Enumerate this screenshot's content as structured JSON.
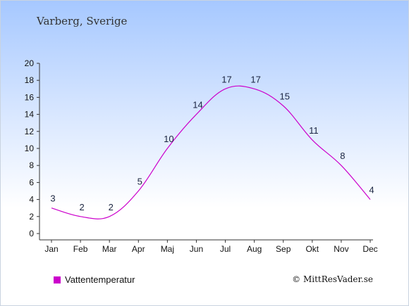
{
  "header": {
    "location": "Varberg, Sverige"
  },
  "legend": {
    "label": "Vattentemperatur",
    "color": "#cc00cc"
  },
  "credit": {
    "text": "© MittResVader.se"
  },
  "chart_data": {
    "type": "line",
    "title": "",
    "xlabel": "",
    "ylabel": "",
    "categories": [
      "Jan",
      "Feb",
      "Mar",
      "Apr",
      "Maj",
      "Jun",
      "Jul",
      "Aug",
      "Sep",
      "Okt",
      "Nov",
      "Dec"
    ],
    "series": [
      {
        "name": "Vattentemperatur",
        "values": [
          3,
          2,
          2,
          5,
          10,
          14,
          17,
          17,
          15,
          11,
          8,
          4
        ],
        "color": "#cc00cc"
      }
    ],
    "data_labels": [
      "3",
      "2",
      "2",
      "5",
      "10",
      "14",
      "17",
      "17",
      "15",
      "11",
      "8",
      "4"
    ],
    "ylim": [
      0,
      20
    ],
    "yticks": [
      0,
      2,
      4,
      6,
      8,
      10,
      12,
      14,
      16,
      18,
      20
    ],
    "grid": false,
    "legend_position": "bottom-left"
  }
}
